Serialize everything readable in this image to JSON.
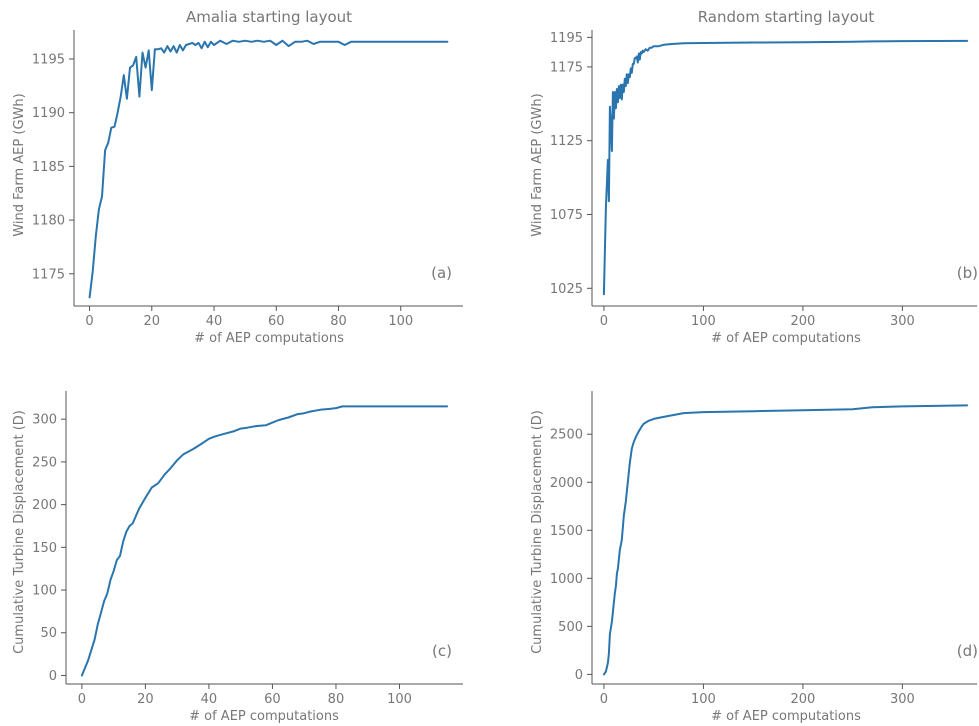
{
  "colors": {
    "series": "#2a75ad",
    "text": "#777777",
    "axis": "#555555"
  },
  "chart_data": [
    {
      "id": "a",
      "type": "line",
      "title": "Amalia starting layout",
      "xlabel": "# of AEP computations",
      "ylabel": "Wind Farm AEP (GWh)",
      "annotation": "(a)",
      "xlim": [
        -5,
        120
      ],
      "ylim": [
        1172,
        1197.7
      ],
      "xticks": [
        0,
        20,
        40,
        60,
        80,
        100
      ],
      "yticks": [
        1175,
        1180,
        1185,
        1190,
        1195
      ],
      "series": [
        {
          "x": [
            0,
            1,
            2,
            3,
            4,
            5,
            6,
            7,
            8,
            9,
            10,
            11,
            12,
            13,
            14,
            15,
            16,
            17,
            18,
            19,
            20,
            21,
            22,
            23,
            24,
            25,
            26,
            27,
            28,
            29,
            30,
            31,
            32,
            33,
            34,
            35,
            36,
            37,
            38,
            39,
            40,
            42,
            44,
            46,
            48,
            50,
            52,
            54,
            56,
            58,
            60,
            62,
            64,
            66,
            68,
            70,
            72,
            74,
            76,
            78,
            80,
            82,
            84,
            90,
            100,
            115
          ],
          "y": [
            1172.8,
            1175.2,
            1178.5,
            1181.0,
            1182.2,
            1186.5,
            1187.2,
            1188.6,
            1188.7,
            1190.0,
            1191.5,
            1193.5,
            1191.3,
            1194.2,
            1194.4,
            1195.2,
            1191.5,
            1195.6,
            1194.2,
            1195.8,
            1192.1,
            1195.9,
            1195.9,
            1196.0,
            1195.6,
            1196.2,
            1195.7,
            1196.2,
            1195.6,
            1196.3,
            1195.8,
            1196.3,
            1196.4,
            1196.5,
            1196.3,
            1196.5,
            1196.0,
            1196.6,
            1196.1,
            1196.6,
            1196.3,
            1196.7,
            1196.4,
            1196.7,
            1196.6,
            1196.7,
            1196.6,
            1196.7,
            1196.6,
            1196.7,
            1196.3,
            1196.7,
            1196.2,
            1196.6,
            1196.6,
            1196.7,
            1196.4,
            1196.6,
            1196.6,
            1196.6,
            1196.6,
            1196.3,
            1196.6,
            1196.6,
            1196.6,
            1196.6
          ]
        }
      ]
    },
    {
      "id": "b",
      "type": "line",
      "title": "Random starting layout",
      "xlabel": "# of AEP computations",
      "ylabel": "Wind Farm AEP (GWh)",
      "annotation": "(b)",
      "xlim": [
        -12,
        375
      ],
      "ylim": [
        1013,
        1200
      ],
      "xticks": [
        0,
        100,
        200,
        300
      ],
      "yticks": [
        1025,
        1075,
        1125,
        1175,
        1195
      ],
      "series": [
        {
          "x": [
            0,
            2,
            4,
            5,
            6,
            7,
            8,
            9,
            10,
            11,
            12,
            13,
            14,
            15,
            16,
            17,
            18,
            19,
            20,
            21,
            22,
            23,
            24,
            25,
            26,
            27,
            28,
            29,
            30,
            31,
            32,
            33,
            34,
            35,
            36,
            37,
            38,
            39,
            40,
            42,
            44,
            46,
            48,
            50,
            55,
            60,
            70,
            80,
            100,
            150,
            200,
            250,
            270,
            300,
            365
          ],
          "y": [
            1021,
            1080,
            1112,
            1084,
            1148,
            1136,
            1118,
            1158,
            1140,
            1158,
            1147,
            1160,
            1151,
            1162,
            1154,
            1163,
            1153,
            1163,
            1158,
            1167,
            1162,
            1170,
            1164,
            1170,
            1168,
            1174,
            1171,
            1177,
            1177,
            1181,
            1181,
            1182,
            1178,
            1184,
            1180,
            1185,
            1184,
            1186,
            1185,
            1187,
            1186,
            1188,
            1188,
            1189,
            1189,
            1190,
            1190.6,
            1191,
            1191.2,
            1191.5,
            1191.7,
            1192,
            1192.3,
            1192.5,
            1192.6
          ]
        }
      ]
    },
    {
      "id": "c",
      "type": "line",
      "title": "",
      "xlabel": "# of AEP computations",
      "ylabel": "Cumulative Turbine Displacement (D)",
      "annotation": "(c)",
      "xlim": [
        -5,
        120
      ],
      "ylim": [
        -10,
        333
      ],
      "xticks": [
        0,
        20,
        40,
        60,
        80,
        100
      ],
      "yticks": [
        0,
        50,
        100,
        150,
        200,
        250,
        300
      ],
      "series": [
        {
          "x": [
            0,
            2,
            4,
            5,
            6,
            7,
            8,
            9,
            10,
            11,
            12,
            13,
            14,
            15,
            16,
            18,
            20,
            22,
            24,
            26,
            28,
            30,
            32,
            35,
            38,
            40,
            42,
            45,
            48,
            50,
            52,
            55,
            58,
            60,
            62,
            65,
            68,
            70,
            72,
            75,
            78,
            80,
            82,
            84,
            90,
            100,
            115
          ],
          "y": [
            0,
            18,
            42,
            60,
            73,
            87,
            96,
            112,
            122,
            135,
            140,
            157,
            168,
            175,
            178,
            195,
            208,
            220,
            225,
            235,
            243,
            252,
            259,
            265,
            272,
            277,
            280,
            283,
            286,
            289,
            290,
            292,
            293,
            296,
            299,
            302,
            306,
            307,
            309,
            311,
            312,
            313,
            315,
            315,
            315,
            315,
            315
          ]
        }
      ]
    },
    {
      "id": "d",
      "type": "line",
      "title": "",
      "xlabel": "# of AEP computations",
      "ylabel": "Cumulative Turbine Displacement (D)",
      "annotation": "(d)",
      "xlim": [
        -12,
        375
      ],
      "ylim": [
        -100,
        2950
      ],
      "xticks": [
        0,
        100,
        200,
        300
      ],
      "yticks": [
        0,
        500,
        1000,
        1500,
        2000,
        2500
      ],
      "series": [
        {
          "x": [
            0,
            2,
            4,
            5,
            6,
            8,
            10,
            11,
            12,
            13,
            14,
            16,
            17,
            18,
            20,
            22,
            24,
            25,
            26,
            28,
            30,
            32,
            35,
            38,
            40,
            45,
            50,
            60,
            70,
            80,
            100,
            150,
            200,
            250,
            270,
            300,
            365
          ],
          "y": [
            0,
            30,
            120,
            220,
            420,
            550,
            750,
            850,
            920,
            1050,
            1100,
            1300,
            1350,
            1400,
            1650,
            1800,
            2000,
            2100,
            2200,
            2350,
            2420,
            2470,
            2530,
            2580,
            2610,
            2640,
            2660,
            2680,
            2700,
            2720,
            2730,
            2740,
            2750,
            2760,
            2780,
            2790,
            2800
          ]
        }
      ]
    }
  ]
}
